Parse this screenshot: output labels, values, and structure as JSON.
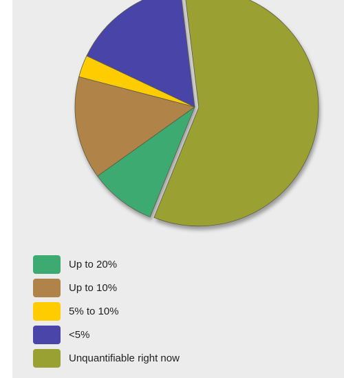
{
  "chart_data": {
    "type": "pie",
    "title": "",
    "slices": [
      {
        "label": "Unquantifiable right now",
        "value": 58,
        "color": "#9aa133"
      },
      {
        "label": "Up to 20%",
        "value": 9,
        "color": "#3daa72"
      },
      {
        "label": "Up to 10%",
        "value": 14,
        "color": "#b0834a"
      },
      {
        "label": "5% to 10%",
        "value": 3,
        "color": "#ffcc00"
      },
      {
        "label": "<5%",
        "value": 16,
        "color": "#4a45a8"
      }
    ],
    "legend": {
      "placement": "bottom-left",
      "items": [
        {
          "label": "Up to 20%",
          "color": "#3daa72"
        },
        {
          "label": "Up to 10%",
          "color": "#b0834a"
        },
        {
          "label": "5% to 10%",
          "color": "#ffcc00"
        },
        {
          "label": "<5%",
          "color": "#4a45a8"
        },
        {
          "label": "Unquantifiable right now",
          "color": "#9aa133"
        }
      ]
    }
  }
}
